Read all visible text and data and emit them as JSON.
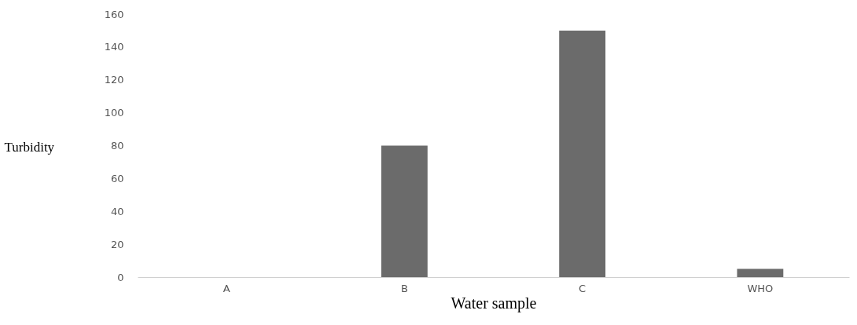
{
  "chart_data": {
    "type": "bar",
    "xlabel": "Water sample",
    "ylabel": "Turbidity",
    "categories": [
      "A",
      "B",
      "C",
      "WHO"
    ],
    "values": [
      0,
      80,
      150,
      5
    ],
    "color": "#6b6b6b",
    "ylim": [
      0,
      160
    ],
    "yticks": [
      0,
      20,
      40,
      60,
      80,
      100,
      120,
      140,
      160
    ],
    "grid": false
  }
}
